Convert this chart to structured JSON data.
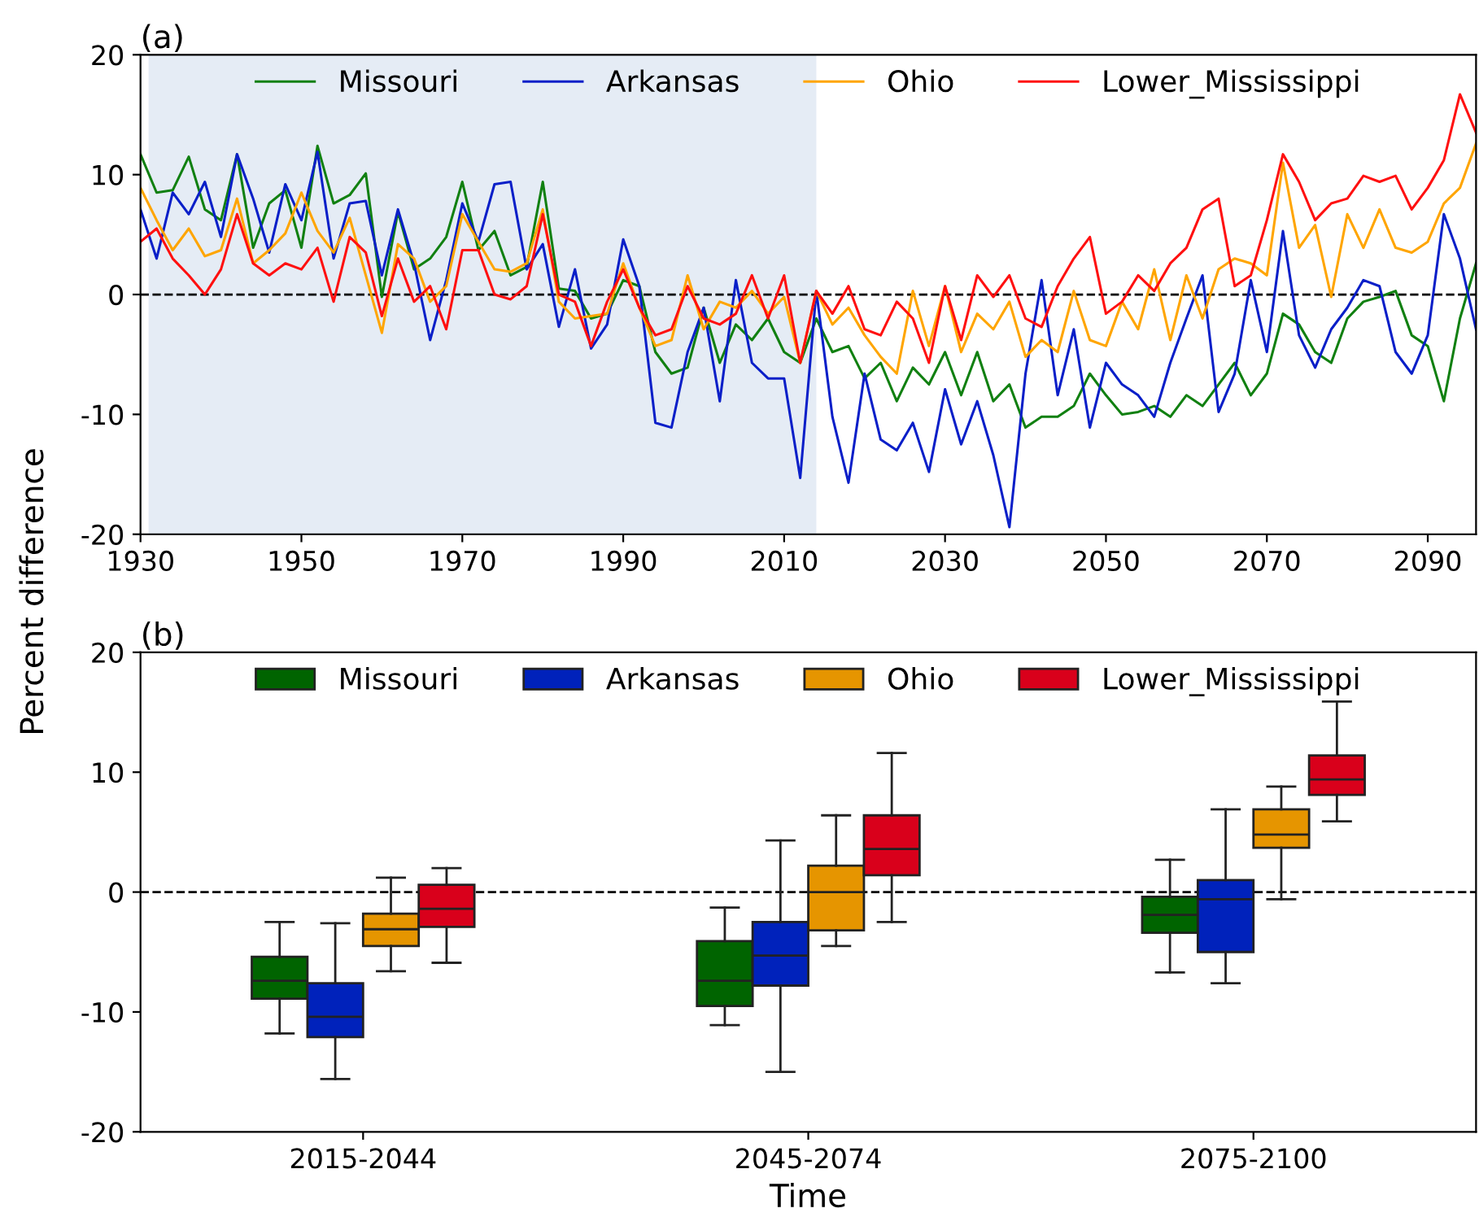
{
  "chart_data": [
    {
      "type": "line",
      "title": "(a)",
      "ylabel": "Percent difference",
      "legend": "top",
      "xlim": [
        1930,
        2096
      ],
      "xticks": [
        1930,
        1950,
        1970,
        1990,
        2010,
        2030,
        2050,
        2070,
        2090
      ],
      "ylim": [
        -20,
        20
      ],
      "yticks": [
        -20,
        -10,
        0,
        10,
        20
      ],
      "x": [
        1930,
        1932,
        1934,
        1936,
        1938,
        1940,
        1942,
        1944,
        1946,
        1948,
        1950,
        1952,
        1954,
        1956,
        1958,
        1960,
        1962,
        1964,
        1966,
        1968,
        1970,
        1972,
        1974,
        1976,
        1978,
        1980,
        1982,
        1984,
        1986,
        1988,
        1990,
        1992,
        1994,
        1996,
        1998,
        2000,
        2002,
        2004,
        2006,
        2008,
        2010,
        2012,
        2014,
        2016,
        2018,
        2020,
        2022,
        2024,
        2026,
        2028,
        2030,
        2032,
        2034,
        2036,
        2038,
        2040,
        2042,
        2044,
        2046,
        2048,
        2050,
        2052,
        2054,
        2056,
        2058,
        2060,
        2062,
        2064,
        2066,
        2068,
        2070,
        2072,
        2074,
        2076,
        2078,
        2080,
        2082,
        2084,
        2086,
        2088,
        2090,
        2092,
        2094,
        2096
      ],
      "ref_lines": [
        {
          "axis": "y",
          "value": 0,
          "color": "#000000",
          "line_style": "dashed"
        }
      ],
      "bands": [
        {
          "axis": "x",
          "from": 1931,
          "to": 2014,
          "color": "#e5ecf5"
        }
      ],
      "series": [
        {
          "name": "Missouri",
          "color": "#118011",
          "values": [
            11.7,
            8.5,
            8.7,
            11.5,
            7.1,
            6.2,
            11.7,
            3.9,
            7.6,
            8.7,
            3.9,
            12.4,
            7.6,
            8.3,
            10.1,
            -0.2,
            6.9,
            2.1,
            3.0,
            4.8,
            9.4,
            3.7,
            5.3,
            1.6,
            2.3,
            9.4,
            0.5,
            0.3,
            -2.0,
            -1.6,
            1.2,
            0.7,
            -4.8,
            -6.6,
            -6.1,
            -1.1,
            -5.7,
            -2.5,
            -3.8,
            -2.0,
            -4.8,
            -5.7,
            -2.0,
            -4.8,
            -4.3,
            -7.0,
            -5.7,
            -8.9,
            -6.1,
            -7.5,
            -4.8,
            -8.4,
            -4.8,
            -8.9,
            -7.5,
            -11.1,
            -10.2,
            -10.2,
            -9.3,
            -6.6,
            -8.4,
            -10.0,
            -9.8,
            -9.3,
            -10.2,
            -8.4,
            -9.3,
            -7.5,
            -5.7,
            -8.4,
            -6.6,
            -1.6,
            -2.5,
            -4.8,
            -5.7,
            -2.0,
            -0.6,
            -0.2,
            0.3,
            -3.4,
            -4.3,
            -8.9,
            -2.0,
            2.6
          ]
        },
        {
          "name": "Arkansas",
          "color": "#0a1fc8",
          "values": [
            7.1,
            3.0,
            8.5,
            6.7,
            9.4,
            4.8,
            11.7,
            8.0,
            3.5,
            9.2,
            6.2,
            11.9,
            3.0,
            7.6,
            7.8,
            1.6,
            7.1,
            2.6,
            -3.8,
            1.2,
            7.6,
            4.4,
            9.2,
            9.4,
            2.1,
            4.2,
            -2.7,
            2.1,
            -4.5,
            -2.5,
            4.6,
            0.7,
            -10.7,
            -11.1,
            -4.8,
            -1.1,
            -8.9,
            1.2,
            -5.7,
            -7.0,
            -7.0,
            -15.3,
            0.3,
            -10.2,
            -15.7,
            -6.6,
            -12.1,
            -13.0,
            -10.7,
            -14.8,
            -7.9,
            -12.5,
            -8.9,
            -13.4,
            -19.4,
            -6.6,
            1.2,
            -8.4,
            -2.9,
            -11.1,
            -5.7,
            -7.5,
            -8.4,
            -10.2,
            -5.7,
            -2.0,
            1.6,
            -9.8,
            -6.6,
            1.2,
            -4.8,
            5.3,
            -3.4,
            -6.1,
            -2.9,
            -1.1,
            1.2,
            0.7,
            -4.8,
            -6.6,
            -3.4,
            6.7,
            3.0,
            -2.9
          ]
        },
        {
          "name": "Ohio",
          "color": "#ffa500",
          "values": [
            8.9,
            6.2,
            3.7,
            5.5,
            3.2,
            3.7,
            8.0,
            2.6,
            3.7,
            5.1,
            8.5,
            5.3,
            3.5,
            6.4,
            1.6,
            -3.2,
            4.2,
            3.0,
            -0.6,
            0.7,
            6.7,
            4.4,
            2.1,
            1.9,
            2.6,
            7.1,
            -0.6,
            -2.0,
            -1.8,
            -1.6,
            2.6,
            -1.1,
            -4.3,
            -3.8,
            1.6,
            -2.9,
            -0.6,
            -1.1,
            0.3,
            -1.6,
            -0.2,
            -5.7,
            0.3,
            -2.5,
            -1.1,
            -3.4,
            -5.2,
            -6.6,
            0.3,
            -4.3,
            0.7,
            -4.8,
            -1.6,
            -2.9,
            -0.6,
            -5.2,
            -3.8,
            -4.8,
            0.3,
            -3.8,
            -4.3,
            -0.6,
            -2.9,
            2.1,
            -3.8,
            1.6,
            -2.0,
            2.1,
            3.0,
            2.6,
            1.6,
            11.0,
            3.9,
            5.8,
            -0.2,
            6.7,
            3.9,
            7.1,
            3.9,
            3.5,
            4.4,
            7.6,
            8.9,
            12.6
          ]
        },
        {
          "name": "Lower_Mississippi",
          "color": "#ff1010",
          "values": [
            4.4,
            5.5,
            3.0,
            1.6,
            0.0,
            2.1,
            6.7,
            2.6,
            1.6,
            2.6,
            2.1,
            3.9,
            -0.6,
            4.8,
            3.5,
            -1.8,
            3.0,
            -0.6,
            0.7,
            -2.9,
            3.7,
            3.7,
            0.0,
            -0.4,
            0.7,
            6.7,
            0.0,
            -0.6,
            -4.3,
            -0.6,
            2.1,
            -1.1,
            -3.4,
            -2.9,
            0.7,
            -2.0,
            -2.5,
            -1.6,
            1.6,
            -2.0,
            1.6,
            -5.7,
            0.3,
            -1.6,
            0.7,
            -2.9,
            -3.4,
            -0.6,
            -2.0,
            -5.7,
            0.7,
            -3.8,
            1.6,
            -0.2,
            1.6,
            -2.0,
            -2.7,
            0.7,
            3.0,
            4.8,
            -1.6,
            -0.6,
            1.6,
            0.3,
            2.6,
            3.9,
            7.1,
            8.0,
            0.7,
            1.6,
            6.2,
            11.7,
            9.4,
            6.2,
            7.6,
            8.0,
            9.9,
            9.4,
            9.9,
            7.1,
            8.9,
            11.2,
            16.7,
            13.5
          ]
        }
      ]
    },
    {
      "type": "box",
      "title": "(b)",
      "xlabel": "Time",
      "legend": "top",
      "ylim": [
        -20,
        20
      ],
      "yticks": [
        -20,
        -10,
        0,
        10,
        20
      ],
      "categories": [
        "2015-2044",
        "2045-2074",
        "2075-2100"
      ],
      "ref_lines": [
        {
          "axis": "y",
          "value": 0,
          "color": "#000000",
          "line_style": "dashed"
        }
      ],
      "series": [
        {
          "name": "Missouri",
          "color": "#006400",
          "boxes": [
            {
              "low": -11.8,
              "q1": -8.9,
              "median": -7.4,
              "q3": -5.4,
              "high": -2.5
            },
            {
              "low": -11.1,
              "q1": -9.5,
              "median": -7.4,
              "q3": -4.1,
              "high": -1.3
            },
            {
              "low": -6.7,
              "q1": -3.4,
              "median": -1.9,
              "q3": -0.4,
              "high": 2.7
            }
          ]
        },
        {
          "name": "Arkansas",
          "color": "#0022bb",
          "boxes": [
            {
              "low": -15.6,
              "q1": -12.1,
              "median": -10.4,
              "q3": -7.6,
              "high": -2.6
            },
            {
              "low": -15.0,
              "q1": -7.8,
              "median": -5.3,
              "q3": -2.5,
              "high": 4.3
            },
            {
              "low": -7.6,
              "q1": -5.0,
              "median": -0.6,
              "q3": 1.0,
              "high": 6.9
            }
          ]
        },
        {
          "name": "Ohio",
          "color": "#e69500",
          "boxes": [
            {
              "low": -6.6,
              "q1": -4.5,
              "median": -3.1,
              "q3": -1.8,
              "high": 1.2
            },
            {
              "low": -4.5,
              "q1": -3.2,
              "median": 0.0,
              "q3": 2.2,
              "high": 6.4
            },
            {
              "low": -0.6,
              "q1": 3.7,
              "median": 4.8,
              "q3": 6.9,
              "high": 8.8
            }
          ]
        },
        {
          "name": "Lower_Mississippi",
          "color": "#d9001b",
          "boxes": [
            {
              "low": -5.9,
              "q1": -2.9,
              "median": -1.4,
              "q3": 0.6,
              "high": 2.0
            },
            {
              "low": -2.5,
              "q1": 1.4,
              "median": 3.6,
              "q3": 6.4,
              "high": 11.6
            },
            {
              "low": 5.9,
              "q1": 8.1,
              "median": 9.4,
              "q3": 11.4,
              "high": 15.9
            }
          ]
        }
      ]
    }
  ]
}
